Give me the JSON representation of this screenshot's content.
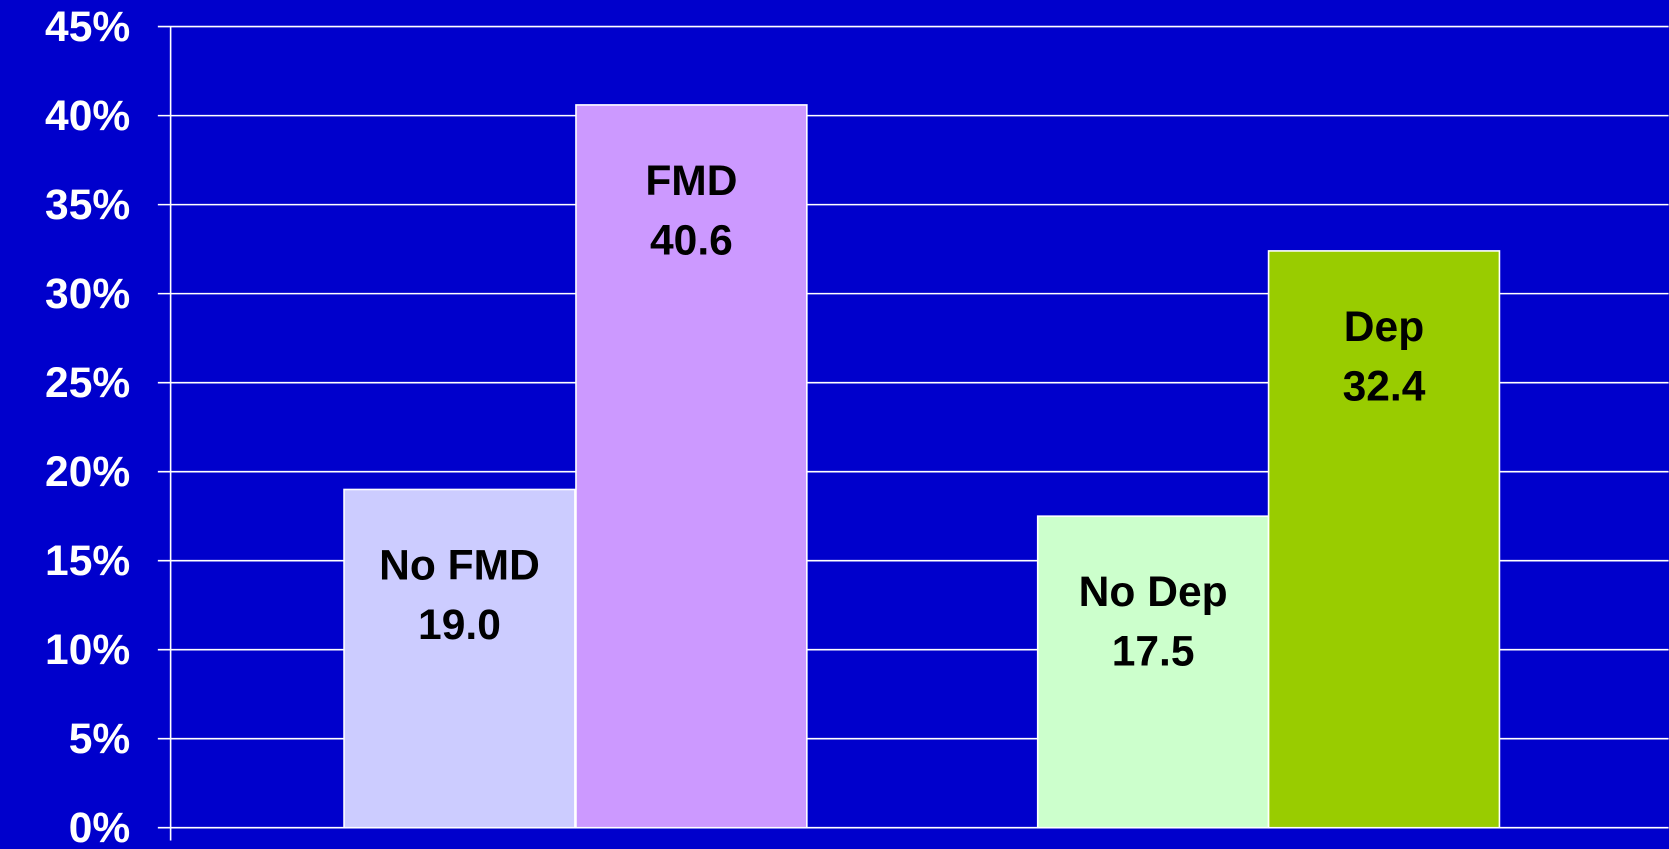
{
  "chart_data": {
    "type": "bar",
    "categories": [
      "No FMD",
      "FMD",
      "No Dep",
      "Dep"
    ],
    "values": [
      19.0,
      40.6,
      17.5,
      32.4
    ],
    "value_labels": [
      "19.0",
      "40.6",
      "17.5",
      "32.4"
    ],
    "colors": [
      "#ccccff",
      "#cc99ff",
      "#ccffcc",
      "#99cc00"
    ],
    "ylim": [
      0,
      45
    ],
    "yticks": [
      {
        "value": 0,
        "label": "0%"
      },
      {
        "value": 5,
        "label": "5%"
      },
      {
        "value": 10,
        "label": "10%"
      },
      {
        "value": 15,
        "label": "15%"
      },
      {
        "value": 20,
        "label": "20%"
      },
      {
        "value": 25,
        "label": "25%"
      },
      {
        "value": 30,
        "label": "30%"
      },
      {
        "value": 35,
        "label": "35%"
      },
      {
        "value": 40,
        "label": "40%"
      },
      {
        "value": 45,
        "label": "45%"
      }
    ],
    "grid": true
  }
}
